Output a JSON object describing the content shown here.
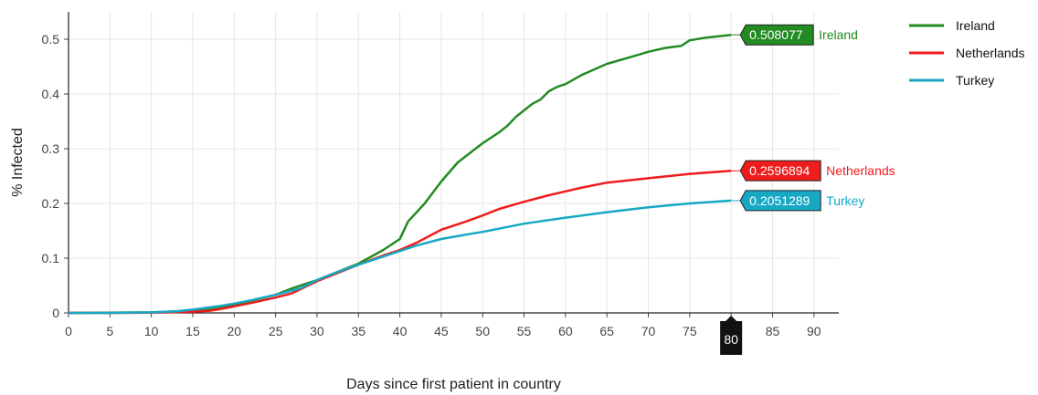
{
  "chart_data": {
    "type": "line",
    "title": "",
    "xlabel": "Days since first patient in country",
    "ylabel": "% Infected",
    "xlim": [
      0,
      93
    ],
    "ylim": [
      0,
      0.55
    ],
    "xticks": [
      "0",
      "5",
      "10",
      "15",
      "20",
      "25",
      "30",
      "35",
      "40",
      "45",
      "50",
      "55",
      "60",
      "65",
      "70",
      "75",
      "80",
      "85",
      "90"
    ],
    "yticks": [
      "0",
      "0.1",
      "0.2",
      "0.3",
      "0.4",
      "0.5"
    ],
    "grid": true,
    "legend_position": "top-right",
    "hover_x_label": "80",
    "series": [
      {
        "name": "Ireland",
        "color": "#228b22",
        "hover_value": "0.508077",
        "x": [
          0,
          5,
          10,
          12,
          15,
          18,
          20,
          22,
          25,
          27,
          30,
          32,
          35,
          38,
          40,
          41,
          43,
          45,
          47,
          50,
          52,
          53,
          54,
          55,
          56,
          57,
          58,
          59,
          60,
          62,
          65,
          68,
          70,
          72,
          74,
          75,
          77,
          80
        ],
        "y": [
          0,
          0.0005,
          0.001,
          0.002,
          0.004,
          0.009,
          0.015,
          0.022,
          0.033,
          0.045,
          0.06,
          0.072,
          0.09,
          0.115,
          0.135,
          0.167,
          0.2,
          0.24,
          0.275,
          0.31,
          0.33,
          0.342,
          0.358,
          0.37,
          0.382,
          0.39,
          0.405,
          0.413,
          0.418,
          0.435,
          0.455,
          0.468,
          0.477,
          0.484,
          0.488,
          0.498,
          0.503,
          0.508
        ]
      },
      {
        "name": "Netherlands",
        "color": "#ee1c1c",
        "hover_value": "0.2596894",
        "x": [
          0,
          5,
          10,
          15,
          17,
          18,
          20,
          22,
          25,
          27,
          30,
          32,
          35,
          38,
          40,
          42,
          45,
          48,
          50,
          52,
          55,
          58,
          60,
          62,
          65,
          70,
          75,
          80
        ],
        "y": [
          0,
          0,
          0.0005,
          0.002,
          0.004,
          0.006,
          0.012,
          0.018,
          0.028,
          0.036,
          0.058,
          0.07,
          0.088,
          0.105,
          0.115,
          0.128,
          0.152,
          0.167,
          0.178,
          0.19,
          0.203,
          0.215,
          0.222,
          0.229,
          0.238,
          0.246,
          0.254,
          0.2596894
        ]
      },
      {
        "name": "Turkey",
        "color": "#17a8c4",
        "hover_value": "0.2051289",
        "x": [
          0,
          5,
          10,
          13,
          15,
          18,
          20,
          22,
          25,
          28,
          30,
          32,
          35,
          38,
          40,
          42,
          45,
          48,
          50,
          55,
          60,
          65,
          70,
          75,
          80
        ],
        "y": [
          0,
          0,
          0.001,
          0.003,
          0.006,
          0.012,
          0.017,
          0.023,
          0.033,
          0.045,
          0.06,
          0.072,
          0.088,
          0.103,
          0.113,
          0.123,
          0.135,
          0.143,
          0.148,
          0.163,
          0.174,
          0.184,
          0.193,
          0.2,
          0.2051289
        ]
      }
    ]
  }
}
